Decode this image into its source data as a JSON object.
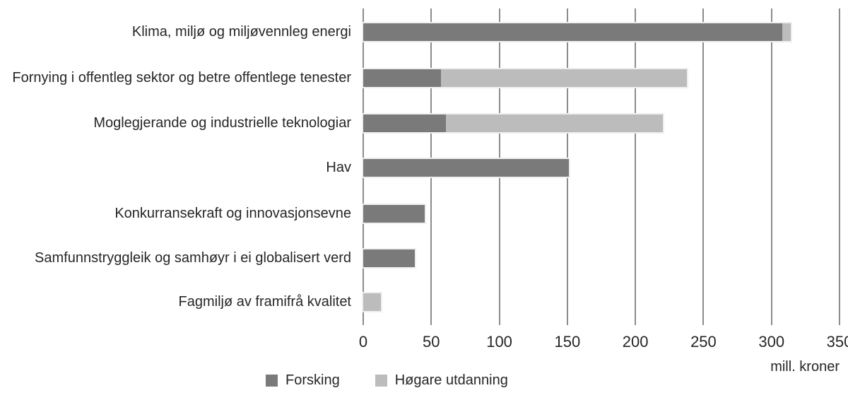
{
  "chart_data": {
    "type": "bar",
    "orientation": "horizontal",
    "stacked": true,
    "title": "",
    "xlabel": "mill. kroner",
    "ylabel": "",
    "xlim": [
      0,
      350
    ],
    "xticks": [
      0,
      50,
      100,
      150,
      200,
      250,
      300,
      350
    ],
    "grid": "vertical",
    "legend_position": "bottom",
    "categories": [
      "Klima, miljø og miljøvennleg energi",
      "Fornying i offentleg sektor og betre offentlege tenester",
      "Moglegjerande og industrielle teknologiar",
      "Hav",
      "Konkurransekraft og innovasjonsevne",
      "Samfunnstryggleik og samhøyr i ei globalisert verd",
      "Fagmiljø av framifrå kvalitet"
    ],
    "series": [
      {
        "name": "Forsking",
        "color": "#7a7a7a",
        "values": [
          308,
          57,
          61,
          151,
          45,
          38,
          0
        ]
      },
      {
        "name": "Høgare utdanning",
        "color": "#bcbcbc",
        "values": [
          6,
          181,
          159,
          0,
          0,
          0,
          13
        ]
      }
    ]
  },
  "colors": {
    "gridline": "#8c8c8c",
    "bar_halo": "#efefef",
    "text": "#262626",
    "background": "#ffffff"
  }
}
